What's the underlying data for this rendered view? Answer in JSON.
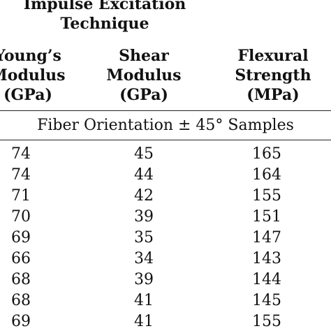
{
  "header": {
    "group_title_line1": "Impulse Excitation",
    "group_title_line2": "Technique",
    "columns": [
      {
        "line1": "Young’s",
        "line2": "Modulus",
        "line3": "(GPa)"
      },
      {
        "line1": "Shear",
        "line2": "Modulus",
        "line3": "(GPa)"
      },
      {
        "line1": "Flexural",
        "line2": "Strength",
        "line3": "(MPa)"
      }
    ]
  },
  "section_label": "Fiber Orientation ± 45° Samples",
  "rows": [
    [
      "74",
      "45",
      "165"
    ],
    [
      "74",
      "44",
      "164"
    ],
    [
      "71",
      "42",
      "155"
    ],
    [
      "70",
      "39",
      "151"
    ],
    [
      "69",
      "35",
      "147"
    ],
    [
      "66",
      "34",
      "143"
    ],
    [
      "68",
      "39",
      "144"
    ],
    [
      "68",
      "41",
      "145"
    ],
    [
      "69",
      "41",
      "155"
    ]
  ]
}
